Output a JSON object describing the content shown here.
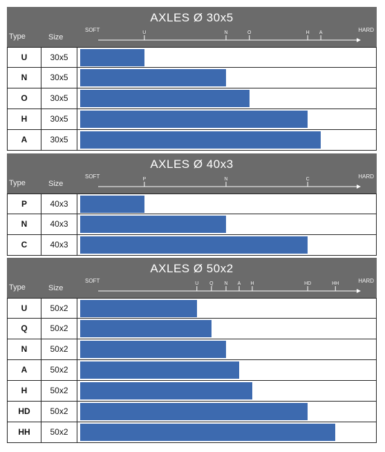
{
  "colors": {
    "header_bg": "#6b6b6b",
    "bar": "#3d6aaf",
    "border": "#222222"
  },
  "labels": {
    "type": "Type",
    "size": "Size",
    "soft": "SOFT",
    "hard": "HARD"
  },
  "chart_data": [
    {
      "type": "bar",
      "title": "AXLES Ø 30x5",
      "orientation": "horizontal",
      "xlabel_left": "SOFT",
      "xlabel_right": "HARD",
      "scale_ticks": [
        "U",
        "N",
        "O",
        "H",
        "A"
      ],
      "categories": [
        "U",
        "N",
        "O",
        "H",
        "A"
      ],
      "sizes": [
        "30x5",
        "30x5",
        "30x5",
        "30x5",
        "30x5"
      ],
      "values": [
        22,
        50,
        58,
        78,
        82.5
      ],
      "xlim": [
        0,
        100
      ]
    },
    {
      "type": "bar",
      "title": "AXLES Ø 40x3",
      "orientation": "horizontal",
      "xlabel_left": "SOFT",
      "xlabel_right": "HARD",
      "scale_ticks": [
        "P",
        "N",
        "C"
      ],
      "categories": [
        "P",
        "N",
        "C"
      ],
      "sizes": [
        "40x3",
        "40x3",
        "40x3"
      ],
      "values": [
        22,
        50,
        78
      ],
      "xlim": [
        0,
        100
      ]
    },
    {
      "type": "bar",
      "title": "AXLES Ø 50x2",
      "orientation": "horizontal",
      "xlabel_left": "SOFT",
      "xlabel_right": "HARD",
      "scale_ticks": [
        "U",
        "Q",
        "N",
        "A",
        "H",
        "HD",
        "HH"
      ],
      "categories": [
        "U",
        "Q",
        "N",
        "A",
        "H",
        "HD",
        "HH"
      ],
      "sizes": [
        "50x2",
        "50x2",
        "50x2",
        "50x2",
        "50x2",
        "50x2",
        "50x2"
      ],
      "values": [
        40,
        45,
        50,
        54.5,
        59,
        78,
        87.5
      ],
      "xlim": [
        0,
        100
      ]
    }
  ]
}
